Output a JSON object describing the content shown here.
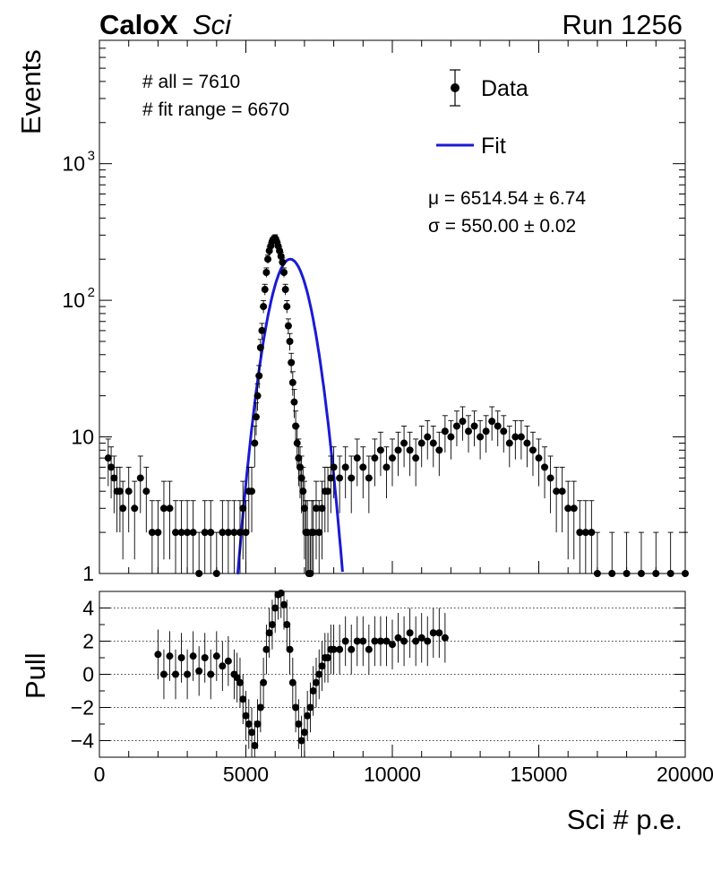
{
  "header": {
    "experiment": "CaloX",
    "detector": "Sci",
    "run": "Run 1256"
  },
  "stats": {
    "n_all": "# all = 7610",
    "n_fit": "# fit range = 6670",
    "mu": "μ = 6514.54 ± 6.74",
    "sigma": "σ = 550.00 ± 0.02"
  },
  "legend": {
    "data": "Data",
    "fit": "Fit"
  },
  "colors": {
    "data": "#000000",
    "fit": "#1a1ad6"
  },
  "chart_data": [
    {
      "type": "scatter",
      "ylabel": "Events",
      "xlim": [
        0,
        20000
      ],
      "ylim": [
        1,
        8000
      ],
      "yscale": "log",
      "ytick_labels": [
        "1",
        "10",
        "10^3"
      ],
      "ytick_label_10_2": "10^2",
      "series": [
        {
          "name": "Data",
          "x": [
            300,
            400,
            500,
            600,
            700,
            800,
            1000,
            1200,
            1400,
            1600,
            1800,
            2000,
            2200,
            2400,
            2600,
            2800,
            3000,
            3200,
            3400,
            3600,
            3800,
            4000,
            4200,
            4400,
            4600,
            4800,
            4900,
            5000,
            5100,
            5200,
            5300,
            5350,
            5400,
            5450,
            5500,
            5550,
            5600,
            5650,
            5700,
            5750,
            5800,
            5850,
            5900,
            5950,
            6000,
            6050,
            6100,
            6150,
            6200,
            6250,
            6300,
            6350,
            6400,
            6450,
            6500,
            6550,
            6600,
            6650,
            6700,
            6750,
            6800,
            6850,
            6900,
            6950,
            7000,
            7050,
            7100,
            7150,
            7200,
            7250,
            7300,
            7400,
            7500,
            7600,
            7700,
            7800,
            7900,
            8000,
            8200,
            8400,
            8600,
            8800,
            9000,
            9200,
            9400,
            9600,
            9800,
            10000,
            10200,
            10400,
            10600,
            10800,
            11000,
            11200,
            11400,
            11600,
            11800,
            12000,
            12200,
            12400,
            12600,
            12800,
            13000,
            13200,
            13400,
            13600,
            13800,
            14000,
            14200,
            14400,
            14600,
            14800,
            15000,
            15200,
            15400,
            15600,
            15800,
            16000,
            16200,
            16400,
            16600,
            16800,
            17000,
            17500,
            18000,
            18500,
            19000,
            19500,
            20000
          ],
          "y": [
            7,
            6,
            5,
            4,
            4,
            3,
            4,
            3,
            5,
            4,
            2,
            2,
            3,
            3,
            2,
            2,
            2,
            2,
            1,
            2,
            2,
            1,
            2,
            2,
            2,
            2,
            3,
            2,
            4,
            4,
            9,
            14,
            20,
            28,
            45,
            60,
            90,
            120,
            160,
            200,
            230,
            250,
            270,
            280,
            285,
            270,
            250,
            230,
            210,
            190,
            160,
            120,
            90,
            65,
            50,
            35,
            25,
            18,
            12,
            9,
            7,
            6,
            5,
            4,
            3,
            2,
            2,
            1,
            1,
            2,
            2,
            3,
            2,
            3,
            4,
            4,
            5,
            6,
            5,
            6,
            5,
            7,
            6,
            5,
            7,
            8,
            6,
            7,
            8,
            9,
            8,
            7,
            9,
            10,
            9,
            8,
            11,
            10,
            12,
            13,
            11,
            12,
            10,
            11,
            13,
            12,
            11,
            9,
            10,
            10,
            9,
            8,
            7,
            6,
            5,
            4,
            4,
            3,
            3,
            2,
            2,
            2,
            1,
            1,
            1,
            1,
            1,
            1,
            1
          ]
        },
        {
          "name": "Fit",
          "function": "gaussian",
          "mu": 6514.54,
          "sigma": 550.0,
          "amplitude": 200,
          "x_range": [
            4700,
            8300
          ]
        }
      ]
    },
    {
      "type": "scatter",
      "ylabel": "Pull",
      "xlabel": "Sci # p.e.",
      "xlim": [
        0,
        20000
      ],
      "ylim": [
        -5,
        5
      ],
      "xtick_labels": [
        "0",
        "5000",
        "10000",
        "15000",
        "20000"
      ],
      "ytick_labels": [
        "−4",
        "−2",
        "0",
        "2",
        "4"
      ],
      "grid_y": [
        -4,
        -2,
        0,
        2,
        4
      ],
      "series": [
        {
          "name": "Pull",
          "x": [
            2000,
            2200,
            2400,
            2600,
            2800,
            3000,
            3200,
            3400,
            3600,
            3800,
            4000,
            4200,
            4400,
            4600,
            4700,
            4800,
            4900,
            5000,
            5100,
            5200,
            5300,
            5400,
            5500,
            5600,
            5700,
            5800,
            5900,
            6000,
            6100,
            6200,
            6300,
            6400,
            6500,
            6600,
            6700,
            6800,
            6900,
            7000,
            7100,
            7200,
            7300,
            7400,
            7500,
            7600,
            7700,
            7800,
            7900,
            8000,
            8200,
            8400,
            8600,
            8800,
            9000,
            9200,
            9400,
            9600,
            9800,
            10000,
            10200,
            10400,
            10600,
            10800,
            11000,
            11200,
            11400,
            11600,
            11800
          ],
          "y": [
            1.2,
            0.0,
            1.1,
            0.0,
            1.0,
            0.0,
            1.1,
            0.2,
            1.0,
            0.0,
            1.1,
            0.5,
            0.8,
            0.0,
            -0.2,
            -0.5,
            -1.5,
            -2.5,
            -3.0,
            -3.5,
            -4.3,
            -3.0,
            -2.0,
            -0.5,
            1.5,
            2.5,
            3.0,
            4.0,
            4.8,
            4.9,
            4.2,
            3.0,
            1.5,
            -0.5,
            -2.0,
            -3.0,
            -4.0,
            -3.5,
            -2.5,
            -2.0,
            -1.0,
            -0.5,
            0.0,
            0.5,
            1.0,
            1.0,
            1.5,
            1.5,
            1.5,
            2.0,
            1.5,
            2.0,
            2.0,
            1.5,
            2.0,
            2.0,
            2.0,
            1.8,
            2.2,
            2.0,
            2.5,
            2.0,
            2.2,
            2.0,
            2.5,
            2.5,
            2.2
          ]
        }
      ]
    }
  ]
}
